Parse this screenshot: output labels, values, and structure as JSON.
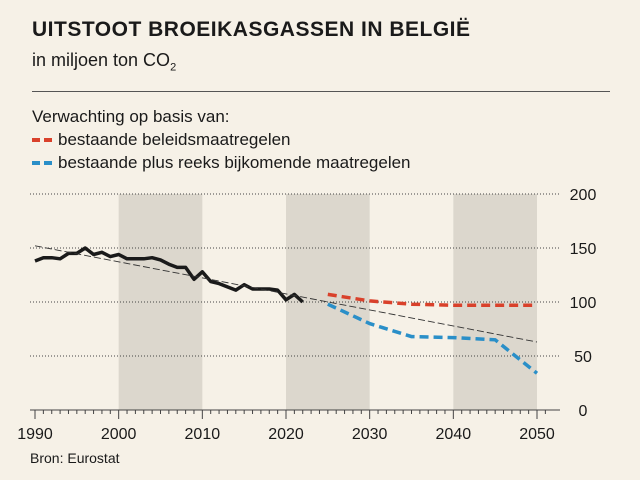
{
  "title": "UITSTOOT BROEIKASGASSEN IN BELGIË",
  "subtitle_main": "in miljoen ton CO",
  "subtitle_sub": "2",
  "legend_title": "Verwachting op basis van:",
  "legend": [
    {
      "label": "bestaande beleidsmaatregelen",
      "color": "#d9412b"
    },
    {
      "label": "bestaande plus reeks bijkomende maatregelen",
      "color": "#2a8fc8"
    }
  ],
  "source": "Bron: Eurostat",
  "colors": {
    "background": "#f6f1e7",
    "shade": "#dcd7cd",
    "historical": "#1a1a1a",
    "trend": "#333333",
    "grid": "#444444"
  },
  "chart_data": {
    "type": "line",
    "xlim": [
      1990,
      2052
    ],
    "ylim": [
      0,
      200
    ],
    "x_ticks": [
      1990,
      2000,
      2010,
      2020,
      2030,
      2040,
      2050
    ],
    "y_ticks": [
      0,
      50,
      100,
      150,
      200
    ],
    "grid": true,
    "shaded_ranges": [
      [
        2000,
        2010
      ],
      [
        2020,
        2030
      ],
      [
        2040,
        2050
      ]
    ],
    "series": [
      {
        "style": "solid",
        "x": [
          1990,
          1991,
          1992,
          1993,
          1994,
          1995,
          1996,
          1997,
          1998,
          1999,
          2000,
          2001,
          2002,
          2003,
          2004,
          2005,
          2006,
          2007,
          2008,
          2009,
          2010,
          2011,
          2012,
          2013,
          2014,
          2015,
          2016,
          2017,
          2018,
          2019,
          2020,
          2021,
          2022
        ],
        "y": [
          138,
          141,
          141,
          140,
          145,
          145,
          150,
          144,
          146,
          142,
          144,
          140,
          140,
          140,
          141,
          139,
          135,
          132,
          132,
          121,
          128,
          119,
          117,
          114,
          111,
          116,
          112,
          112,
          112,
          111,
          102,
          107,
          100
        ]
      },
      {
        "name": "bestaande beleidsmaatregelen",
        "style": "dashed",
        "x": [
          2025,
          2030,
          2035,
          2040,
          2045,
          2050
        ],
        "y": [
          107,
          101,
          98,
          97,
          97,
          97
        ]
      },
      {
        "name": "bestaande plus reeks bijkomende maatregelen",
        "style": "dashed",
        "x": [
          2025,
          2030,
          2035,
          2040,
          2045,
          2050
        ],
        "y": [
          98,
          80,
          68,
          67,
          65,
          34
        ]
      },
      {
        "style": "trend",
        "x": [
          1990,
          2050
        ],
        "y": [
          152,
          63
        ]
      }
    ]
  }
}
